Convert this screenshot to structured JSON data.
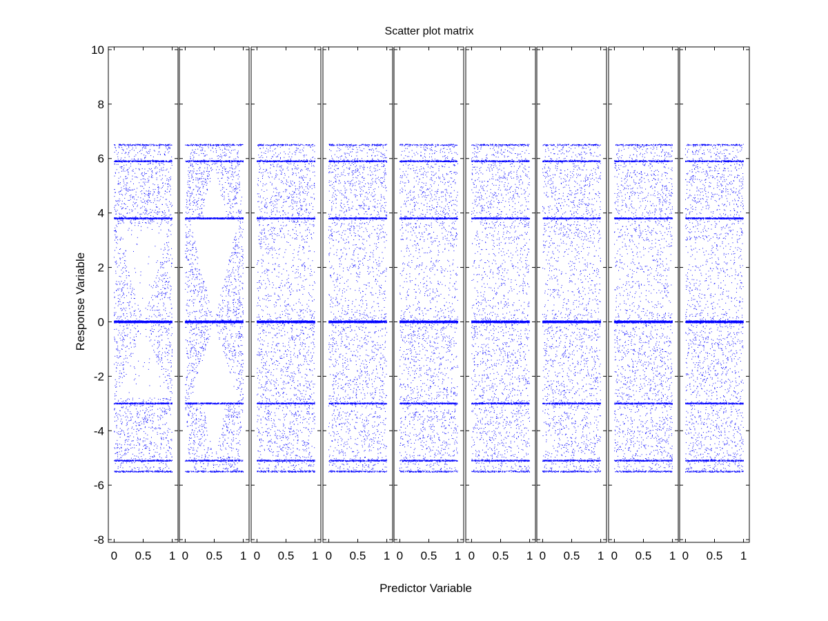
{
  "chart_data": {
    "type": "scatter",
    "title": "Scatter plot matrix",
    "xlabel": "Predictor Variable",
    "ylabel": "Response Variable",
    "panel_count": 9,
    "xlim": [
      -0.1,
      1.1
    ],
    "ylim": [
      -8.1,
      10.1
    ],
    "xticks": [
      0,
      0.5,
      1
    ],
    "xtick_labels": [
      "0",
      "0.5",
      "1"
    ],
    "yticks": [
      -8,
      -6,
      -4,
      -2,
      0,
      2,
      4,
      6,
      8,
      10
    ],
    "ytick_labels": [
      "-8",
      "-6",
      "-4",
      "-2",
      "0",
      "2",
      "4",
      "6",
      "8",
      "10"
    ],
    "marker_color": "#0000ff",
    "grid": false,
    "response_levels": [
      6.5,
      5.9,
      3.8,
      0,
      -3,
      -5.1,
      -5.5
    ],
    "points_per_panel": 5000,
    "series": [
      {
        "panel": 1,
        "x_range": [
          0,
          1
        ],
        "y_range": [
          -5.5,
          6.5
        ],
        "pattern": "V-shaped empty wedge above 0 and below 0, centered at x=0.5"
      },
      {
        "panel": 2,
        "x_range": [
          0,
          1
        ],
        "y_range": [
          -5.5,
          6.5
        ],
        "pattern": "strong triangular voids above and below 0, centered at x=0.5"
      },
      {
        "panel": 3,
        "x_range": [
          0,
          1
        ],
        "y_range": [
          -5.5,
          6.5
        ],
        "pattern": "uniform scatter with dense bands"
      },
      {
        "panel": 4,
        "x_range": [
          0,
          1
        ],
        "y_range": [
          -5.5,
          6.5
        ],
        "pattern": "uniform scatter with dense bands"
      },
      {
        "panel": 5,
        "x_range": [
          0,
          1
        ],
        "y_range": [
          -5.5,
          6.5
        ],
        "pattern": "uniform scatter with dense bands"
      },
      {
        "panel": 6,
        "x_range": [
          0,
          1
        ],
        "y_range": [
          -5.5,
          6.5
        ],
        "pattern": "uniform scatter with dense bands"
      },
      {
        "panel": 7,
        "x_range": [
          0,
          1
        ],
        "y_range": [
          -5.5,
          6.5
        ],
        "pattern": "uniform scatter with dense bands"
      },
      {
        "panel": 8,
        "x_range": [
          0,
          1
        ],
        "y_range": [
          -5.5,
          6.5
        ],
        "pattern": "uniform scatter with dense bands"
      },
      {
        "panel": 9,
        "x_range": [
          0,
          1
        ],
        "y_range": [
          -5.5,
          6.5
        ],
        "pattern": "uniform scatter with dense bands"
      }
    ]
  }
}
